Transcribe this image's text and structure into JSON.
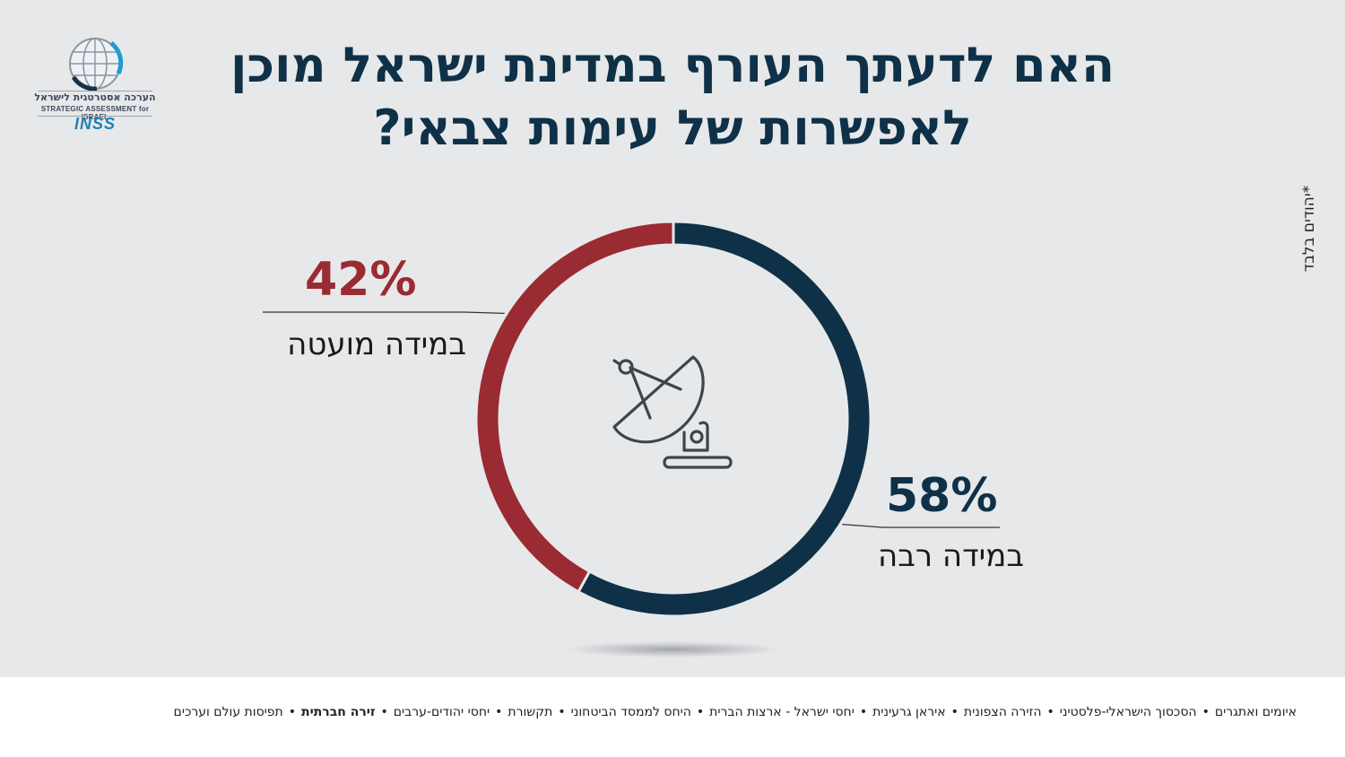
{
  "logo": {
    "hebrew": "הערכה אסטרטגית לישראל",
    "english": "STRATEGIC ASSESSMENT for ISRAEL",
    "brand": "INSS"
  },
  "title_line1": "האם לדעתך העורף במדינת ישראל מוכן",
  "title_line2": "לאפשרות של עימות צבאי?",
  "side_note": "*יהודים בלבד",
  "center_icon": "satellite-dish-icon",
  "chart_data": {
    "type": "pie",
    "title": "האם לדעתך העורף במדינת ישראל מוכן לאפשרות של עימות צבאי?",
    "donut": true,
    "categories": [
      "במידה רבה",
      "במידה מועטה"
    ],
    "values": [
      58,
      42
    ],
    "value_labels": [
      "58%",
      "42%"
    ],
    "colors": [
      "#0e3148",
      "#9a2b32"
    ],
    "start": "top",
    "direction": "clockwise"
  },
  "footer": {
    "items": [
      {
        "label": "איומים ואתגרים",
        "active": false
      },
      {
        "label": "הסכסוך הישראלי-פלסטיני",
        "active": false
      },
      {
        "label": "הזירה הצפונית",
        "active": false
      },
      {
        "label": "איראן גרעינית",
        "active": false
      },
      {
        "label": "יחסי ישראל - ארצות הברית",
        "active": false
      },
      {
        "label": "היחס לממסד הביטחוני",
        "active": false
      },
      {
        "label": "תקשורת",
        "active": false
      },
      {
        "label": "יחסי יהודים-ערבים",
        "active": false
      },
      {
        "label": "זירה חברתית",
        "active": true
      },
      {
        "label": "תפיסות עולם וערכים",
        "active": false
      }
    ]
  }
}
